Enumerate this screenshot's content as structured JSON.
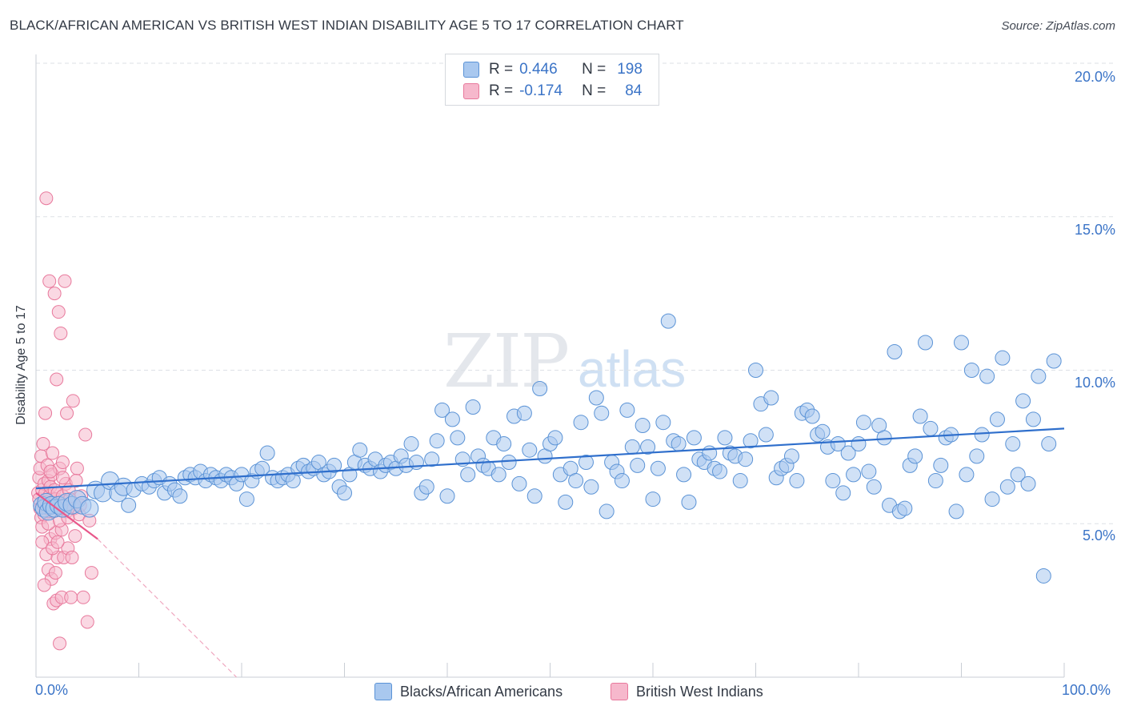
{
  "header": {
    "title": "BLACK/AFRICAN AMERICAN VS BRITISH WEST INDIAN DISABILITY AGE 5 TO 17 CORRELATION CHART",
    "source": "Source: ZipAtlas.com"
  },
  "watermark": {
    "zip": "ZIP",
    "atlas": "atlas"
  },
  "legend": {
    "blue": {
      "r_label": "R =",
      "r_value": "0.446",
      "n_label": "N =",
      "n_value": "198"
    },
    "pink": {
      "r_label": "R =",
      "r_value": "-0.174",
      "n_label": "N =",
      "n_value": "84"
    }
  },
  "colors": {
    "blue_fill": "#a9c8ef",
    "blue_stroke": "#5b93d6",
    "blue_line": "#2f6fcc",
    "pink_fill": "#f6b8cc",
    "pink_stroke": "#e8799c",
    "pink_line": "#e8578a",
    "axis_text": "#3b74c7",
    "grid": "#dde1e6"
  },
  "chart_data": {
    "type": "scatter",
    "title": "BLACK/AFRICAN AMERICAN VS BRITISH WEST INDIAN DISABILITY AGE 5 TO 17 CORRELATION CHART",
    "xlabel": "",
    "ylabel": "Disability Age 5 to 17",
    "xlim": [
      0,
      100
    ],
    "ylim": [
      0,
      20
    ],
    "x_tick_labels": [
      "0.0%",
      "100.0%"
    ],
    "y_tick_labels": [
      "5.0%",
      "10.0%",
      "15.0%",
      "20.0%"
    ],
    "y_ticks": [
      5,
      10,
      15,
      20
    ],
    "grid": true,
    "legend_position": "top-center",
    "series": [
      {
        "name": "Blacks/African Americans",
        "color": "#a9c8ef",
        "trend": {
          "x": [
            0,
            100
          ],
          "y": [
            6.15,
            8.1
          ]
        },
        "points": [
          [
            0.6,
            5.6
          ],
          [
            0.8,
            5.5
          ],
          [
            1.0,
            5.7
          ],
          [
            1.2,
            5.4
          ],
          [
            1.5,
            5.6
          ],
          [
            1.8,
            5.5
          ],
          [
            2.2,
            5.6
          ],
          [
            2.6,
            5.5
          ],
          [
            3.0,
            5.7
          ],
          [
            3.5,
            5.6
          ],
          [
            4.0,
            5.8
          ],
          [
            4.5,
            5.6
          ],
          [
            5.2,
            5.5
          ],
          [
            5.8,
            6.1
          ],
          [
            6.5,
            6.0
          ],
          [
            7.2,
            6.4
          ],
          [
            8.0,
            6.0
          ],
          [
            8.5,
            6.2
          ],
          [
            9.0,
            5.6
          ],
          [
            9.5,
            6.1
          ],
          [
            10.3,
            6.3
          ],
          [
            11.0,
            6.2
          ],
          [
            11.5,
            6.4
          ],
          [
            12.0,
            6.5
          ],
          [
            12.5,
            6.0
          ],
          [
            13.0,
            6.3
          ],
          [
            13.5,
            6.1
          ],
          [
            14.0,
            5.9
          ],
          [
            14.5,
            6.5
          ],
          [
            15.0,
            6.6
          ],
          [
            15.5,
            6.5
          ],
          [
            16.0,
            6.7
          ],
          [
            16.5,
            6.4
          ],
          [
            17.0,
            6.6
          ],
          [
            17.5,
            6.5
          ],
          [
            18.0,
            6.4
          ],
          [
            18.5,
            6.6
          ],
          [
            19.0,
            6.5
          ],
          [
            19.5,
            6.3
          ],
          [
            20.0,
            6.6
          ],
          [
            20.5,
            5.8
          ],
          [
            21.0,
            6.4
          ],
          [
            21.5,
            6.7
          ],
          [
            22.0,
            6.8
          ],
          [
            22.5,
            7.3
          ],
          [
            23.0,
            6.5
          ],
          [
            23.5,
            6.4
          ],
          [
            24.0,
            6.5
          ],
          [
            24.5,
            6.6
          ],
          [
            25.0,
            6.4
          ],
          [
            25.5,
            6.8
          ],
          [
            26.0,
            6.9
          ],
          [
            26.5,
            6.7
          ],
          [
            27.0,
            6.8
          ],
          [
            27.5,
            7.0
          ],
          [
            28.0,
            6.6
          ],
          [
            28.5,
            6.7
          ],
          [
            29.0,
            6.9
          ],
          [
            29.5,
            6.2
          ],
          [
            30.0,
            6.0
          ],
          [
            30.5,
            6.6
          ],
          [
            31.0,
            7.0
          ],
          [
            31.5,
            7.4
          ],
          [
            32.0,
            6.9
          ],
          [
            32.5,
            6.8
          ],
          [
            33.0,
            7.1
          ],
          [
            33.5,
            6.7
          ],
          [
            34.0,
            6.9
          ],
          [
            34.5,
            7.0
          ],
          [
            35.0,
            6.8
          ],
          [
            35.5,
            7.2
          ],
          [
            36.0,
            6.9
          ],
          [
            36.5,
            7.6
          ],
          [
            37.0,
            7.0
          ],
          [
            37.5,
            6.0
          ],
          [
            38.0,
            6.2
          ],
          [
            38.5,
            7.1
          ],
          [
            39.0,
            7.7
          ],
          [
            39.5,
            8.7
          ],
          [
            40.0,
            5.9
          ],
          [
            40.5,
            8.4
          ],
          [
            41.0,
            7.8
          ],
          [
            41.5,
            7.1
          ],
          [
            42.0,
            6.6
          ],
          [
            42.5,
            8.8
          ],
          [
            43.0,
            7.2
          ],
          [
            43.5,
            6.9
          ],
          [
            44.0,
            6.8
          ],
          [
            44.5,
            7.8
          ],
          [
            45.0,
            6.6
          ],
          [
            45.5,
            7.6
          ],
          [
            46.0,
            7.0
          ],
          [
            46.5,
            8.5
          ],
          [
            47.0,
            6.3
          ],
          [
            47.5,
            8.6
          ],
          [
            48.0,
            7.4
          ],
          [
            48.5,
            5.9
          ],
          [
            49.0,
            9.4
          ],
          [
            49.5,
            7.2
          ],
          [
            50.0,
            7.6
          ],
          [
            50.5,
            7.8
          ],
          [
            51.0,
            6.6
          ],
          [
            51.5,
            5.7
          ],
          [
            52.0,
            6.8
          ],
          [
            52.5,
            6.4
          ],
          [
            53.0,
            8.3
          ],
          [
            53.5,
            7.0
          ],
          [
            54.0,
            6.2
          ],
          [
            54.5,
            9.1
          ],
          [
            55.0,
            8.6
          ],
          [
            55.5,
            5.4
          ],
          [
            56.0,
            7.0
          ],
          [
            56.5,
            6.7
          ],
          [
            57.0,
            6.4
          ],
          [
            57.5,
            8.7
          ],
          [
            58.0,
            7.5
          ],
          [
            58.5,
            6.9
          ],
          [
            59.0,
            8.2
          ],
          [
            59.5,
            7.5
          ],
          [
            60.0,
            5.8
          ],
          [
            60.5,
            6.8
          ],
          [
            61.0,
            8.3
          ],
          [
            61.5,
            11.6
          ],
          [
            62.0,
            7.7
          ],
          [
            62.5,
            7.6
          ],
          [
            63.0,
            6.6
          ],
          [
            63.5,
            5.7
          ],
          [
            64.0,
            7.8
          ],
          [
            64.5,
            7.1
          ],
          [
            65.0,
            7.0
          ],
          [
            65.5,
            7.3
          ],
          [
            66.0,
            6.8
          ],
          [
            66.5,
            6.7
          ],
          [
            67.0,
            7.8
          ],
          [
            67.5,
            7.3
          ],
          [
            68.0,
            7.2
          ],
          [
            68.5,
            6.4
          ],
          [
            69.0,
            7.1
          ],
          [
            69.5,
            7.7
          ],
          [
            70.0,
            10.0
          ],
          [
            70.5,
            8.9
          ],
          [
            71.0,
            7.9
          ],
          [
            71.5,
            9.1
          ],
          [
            72.0,
            6.5
          ],
          [
            72.5,
            6.8
          ],
          [
            73.0,
            6.9
          ],
          [
            73.5,
            7.2
          ],
          [
            74.0,
            6.4
          ],
          [
            74.5,
            8.6
          ],
          [
            75.0,
            8.7
          ],
          [
            75.5,
            8.5
          ],
          [
            76.0,
            7.9
          ],
          [
            76.5,
            8.0
          ],
          [
            77.0,
            7.5
          ],
          [
            77.5,
            6.4
          ],
          [
            78.0,
            7.6
          ],
          [
            78.5,
            6.0
          ],
          [
            79.0,
            7.3
          ],
          [
            79.5,
            6.6
          ],
          [
            80.0,
            7.6
          ],
          [
            80.5,
            8.3
          ],
          [
            81.0,
            6.7
          ],
          [
            81.5,
            6.2
          ],
          [
            82.0,
            8.2
          ],
          [
            82.5,
            7.8
          ],
          [
            83.0,
            5.6
          ],
          [
            83.5,
            10.6
          ],
          [
            84.0,
            5.4
          ],
          [
            84.5,
            5.5
          ],
          [
            85.0,
            6.9
          ],
          [
            85.5,
            7.2
          ],
          [
            86.0,
            8.5
          ],
          [
            86.5,
            10.9
          ],
          [
            87.0,
            8.1
          ],
          [
            87.5,
            6.4
          ],
          [
            88.0,
            6.9
          ],
          [
            88.5,
            7.8
          ],
          [
            89.0,
            7.9
          ],
          [
            89.5,
            5.4
          ],
          [
            90.0,
            10.9
          ],
          [
            90.5,
            6.6
          ],
          [
            91.0,
            10.0
          ],
          [
            91.5,
            7.2
          ],
          [
            92.0,
            7.9
          ],
          [
            92.5,
            9.8
          ],
          [
            93.0,
            5.8
          ],
          [
            93.5,
            8.4
          ],
          [
            94.0,
            10.4
          ],
          [
            94.5,
            6.2
          ],
          [
            95.0,
            7.6
          ],
          [
            95.5,
            6.6
          ],
          [
            96.0,
            9.0
          ],
          [
            96.5,
            6.3
          ],
          [
            97.0,
            8.4
          ],
          [
            97.5,
            9.8
          ],
          [
            98.0,
            3.3
          ],
          [
            98.5,
            7.6
          ],
          [
            99.0,
            10.3
          ]
        ]
      },
      {
        "name": "British West Indians",
        "color": "#f6b8cc",
        "trend": {
          "x": [
            0,
            6
          ],
          "y": [
            6.0,
            4.5
          ],
          "dashed_extension_to": [
            19.5,
            0
          ]
        },
        "points": [
          [
            0.2,
            6.0
          ],
          [
            0.3,
            5.8
          ],
          [
            0.3,
            6.5
          ],
          [
            0.4,
            5.5
          ],
          [
            0.4,
            6.8
          ],
          [
            0.5,
            5.2
          ],
          [
            0.5,
            7.2
          ],
          [
            0.6,
            6.1
          ],
          [
            0.6,
            4.9
          ],
          [
            0.7,
            5.6
          ],
          [
            0.7,
            7.6
          ],
          [
            0.8,
            6.3
          ],
          [
            0.8,
            5.3
          ],
          [
            0.9,
            8.6
          ],
          [
            0.9,
            6.0
          ],
          [
            1.0,
            5.7
          ],
          [
            1.0,
            4.0
          ],
          [
            1.1,
            6.9
          ],
          [
            1.1,
            5.5
          ],
          [
            1.2,
            6.4
          ],
          [
            1.2,
            3.5
          ],
          [
            1.3,
            12.9
          ],
          [
            1.3,
            5.9
          ],
          [
            1.4,
            4.5
          ],
          [
            1.4,
            6.2
          ],
          [
            1.5,
            5.6
          ],
          [
            1.5,
            3.2
          ],
          [
            1.6,
            6.6
          ],
          [
            1.6,
            7.3
          ],
          [
            1.7,
            5.4
          ],
          [
            1.7,
            2.4
          ],
          [
            1.8,
            12.5
          ],
          [
            1.8,
            6.1
          ],
          [
            1.9,
            4.7
          ],
          [
            1.9,
            5.8
          ],
          [
            2.0,
            9.7
          ],
          [
            2.0,
            2.5
          ],
          [
            2.1,
            6.0
          ],
          [
            2.1,
            3.9
          ],
          [
            2.2,
            11.9
          ],
          [
            2.2,
            5.5
          ],
          [
            2.3,
            6.8
          ],
          [
            2.3,
            1.1
          ],
          [
            2.4,
            11.2
          ],
          [
            2.4,
            5.7
          ],
          [
            2.5,
            4.8
          ],
          [
            2.5,
            2.6
          ],
          [
            2.6,
            7.0
          ],
          [
            2.6,
            5.9
          ],
          [
            2.7,
            3.9
          ],
          [
            2.8,
            12.9
          ],
          [
            2.8,
            5.6
          ],
          [
            2.9,
            6.3
          ],
          [
            3.0,
            8.6
          ],
          [
            3.0,
            5.4
          ],
          [
            3.1,
            4.2
          ],
          [
            3.2,
            6.1
          ],
          [
            3.3,
            5.8
          ],
          [
            3.4,
            2.6
          ],
          [
            3.5,
            3.9
          ],
          [
            3.6,
            9.0
          ],
          [
            3.7,
            5.5
          ],
          [
            3.8,
            4.6
          ],
          [
            4.0,
            6.8
          ],
          [
            4.2,
            5.3
          ],
          [
            4.4,
            5.9
          ],
          [
            4.6,
            2.6
          ],
          [
            4.8,
            7.9
          ],
          [
            5.0,
            1.8
          ],
          [
            5.2,
            5.1
          ],
          [
            5.4,
            3.4
          ],
          [
            1.0,
            15.6
          ],
          [
            0.6,
            4.4
          ],
          [
            0.8,
            3.0
          ],
          [
            1.2,
            5.0
          ],
          [
            1.4,
            6.7
          ],
          [
            1.6,
            4.2
          ],
          [
            1.9,
            3.4
          ],
          [
            2.1,
            4.4
          ],
          [
            2.3,
            5.1
          ],
          [
            2.6,
            6.5
          ],
          [
            3.1,
            5.2
          ],
          [
            3.9,
            6.4
          ],
          [
            4.3,
            5.6
          ]
        ]
      }
    ]
  },
  "axis": {
    "ylabel": "Disability Age 5 to 17",
    "x_left": "0.0%",
    "x_right": "100.0%",
    "y_ticks": [
      "20.0%",
      "15.0%",
      "10.0%",
      "5.0%"
    ]
  },
  "bottom_legend": {
    "blue": "Blacks/African Americans",
    "pink": "British West Indians"
  }
}
